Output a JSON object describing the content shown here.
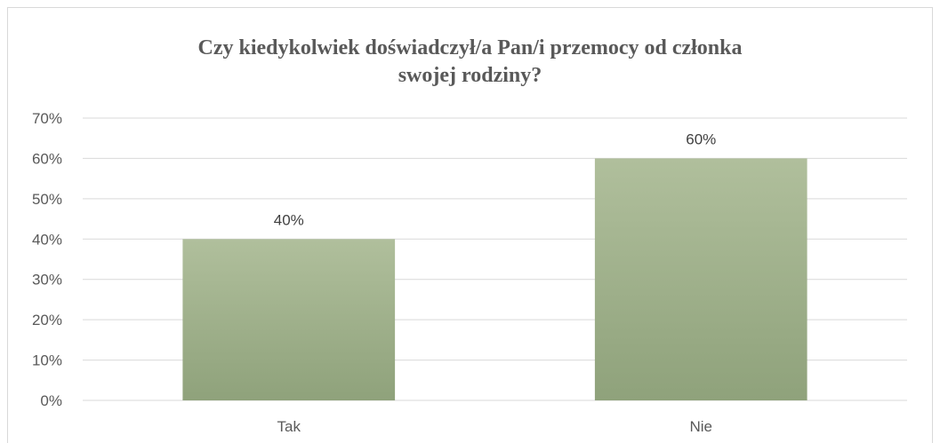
{
  "chart_data": {
    "type": "bar",
    "title_lines": [
      "Czy kiedykolwiek doświadczył/a Pan/i przemocy od członka",
      "swojej rodziny?"
    ],
    "categories": [
      "Tak",
      "Nie"
    ],
    "values": [
      40,
      60
    ],
    "data_labels": [
      "40%",
      "60%"
    ],
    "ylim": [
      0,
      70
    ],
    "yticks": [
      0,
      10,
      20,
      30,
      40,
      50,
      60,
      70
    ],
    "ytick_labels": [
      "0%",
      "10%",
      "20%",
      "30%",
      "40%",
      "50%",
      "60%",
      "70%"
    ],
    "grid": true,
    "legend": "none",
    "bar_color_top": "#b0bf9c",
    "bar_color_bottom": "#8fa27b",
    "gridline_color": "#d9d9d9",
    "text_color": "#595959"
  }
}
